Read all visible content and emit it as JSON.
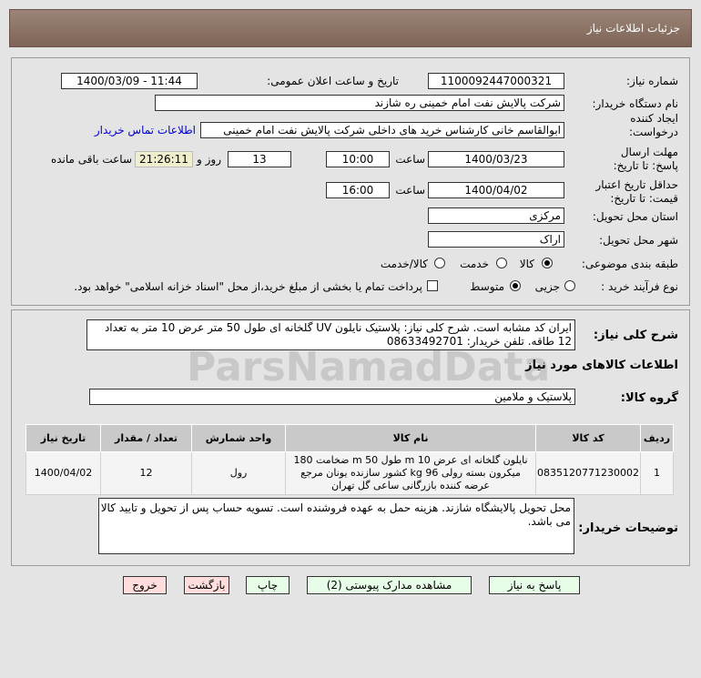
{
  "header": {
    "title": "جزئیات اطلاعات نیاز"
  },
  "form": {
    "need_number_label": "شماره نیاز:",
    "need_number": "1100092447000321",
    "announce_label": "تاریخ و ساعت اعلان عمومی:",
    "announce_value": "1400/03/09 - 11:44",
    "buyer_org_label": "نام دستگاه خریدار:",
    "buyer_org": "شرکت پالایش نفت امام خمینی  ره  شازند",
    "creator_label": "ایجاد کننده درخواست:",
    "creator": "ابوالقاسم  خانی  کارشناس خرید های داخلی  شرکت پالایش نفت امام خمینی",
    "contact_link": "اطلاعات تماس خریدار",
    "reply_deadline_label": "مهلت ارسال پاسخ: تا تاریخ:",
    "reply_date": "1400/03/23",
    "time_label": "ساعت",
    "reply_time": "10:00",
    "days": "13",
    "days_label": "روز و",
    "remaining": "21:26:11",
    "remaining_label": "ساعت باقی مانده",
    "validity_label": "حداقل تاریخ اعتبار قیمت: تا تاریخ:",
    "validity_date": "1400/04/02",
    "validity_time": "16:00",
    "province_label": "استان محل تحویل:",
    "province": "مرکزی",
    "city_label": "شهر محل تحویل:",
    "city": "اراک",
    "category_label": "طبقه بندی موضوعی:",
    "category_options": [
      "کالا",
      "خدمت",
      "کالا/خدمت"
    ],
    "category_selected": "کالا",
    "process_label": "نوع فرآیند خرید :",
    "process_options": [
      "جزیی",
      "متوسط"
    ],
    "process_selected": "متوسط",
    "payment_note": "پرداخت تمام یا بخشی از مبلغ خرید،از محل \"اسناد خزانه اسلامی\" خواهد بود."
  },
  "details": {
    "description_label": "شرح کلی نیاز:",
    "description": "ایران کد مشابه است. شرح کلی نیاز: پلاستیک نایلون UV گلخانه ای طول 50 متر عرض 10 متر به تعداد 12 طاقه. تلفن خریدار: 08633492701",
    "goods_info_title": "اطلاعات کالاهای مورد نیاز",
    "goods_group_label": "گروه کالا:",
    "goods_group": "پلاستیک و ملامین",
    "table": {
      "headers": [
        "ردیف",
        "کد کالا",
        "نام کالا",
        "واحد شمارش",
        "تعداد / مقدار",
        "تاریخ نیاز"
      ],
      "rows": [
        [
          "1",
          "0835120771230002",
          "نایلون گلخانه ای عرض 10 m طول 50 m ضخامت 180 میکرون بسته رولی 96 kg کشور سازنده یونان مرجع عرضه کننده بازرگانی ساعی گل تهران",
          "رول",
          "12",
          "1400/04/02"
        ]
      ]
    },
    "notes_label": "توضیحات خریدار:",
    "notes": "محل تحویل پالایشگاه شازند. هزینه حمل به عهده فروشنده است. تسویه حساب پس از تحویل و تایید کالا می باشد."
  },
  "buttons": {
    "reply": "پاسخ به نیاز",
    "attachments": "مشاهده مدارک پیوستی (2)",
    "print": "چاپ",
    "back": "بازگشت",
    "exit": "خروج"
  },
  "watermark": {
    "brand": "ParsNamadData"
  },
  "colors": {
    "header": "#8b7366",
    "link": "#0000cc",
    "remaining_bg": "#efefce",
    "green_button": "#e8fde8",
    "pink_button": "#ffdddd"
  }
}
